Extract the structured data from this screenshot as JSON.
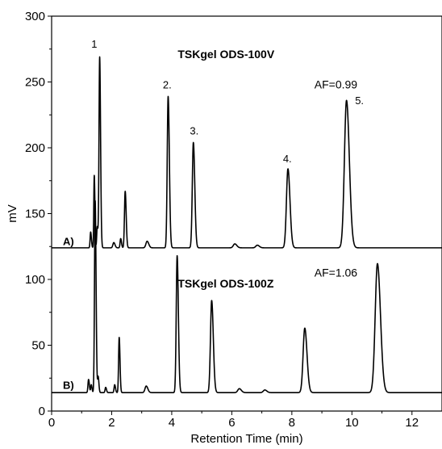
{
  "chart_data": {
    "type": "line",
    "title": "",
    "xlabel": "Retention Time (min)",
    "ylabel": "mV",
    "xlim": [
      0,
      13
    ],
    "ylim": [
      0,
      300
    ],
    "x_ticks": [
      0,
      2,
      4,
      6,
      8,
      10,
      12
    ],
    "y_ticks": [
      0,
      50,
      100,
      150,
      200,
      250,
      300
    ],
    "grid": false,
    "color": "#000000",
    "series": [
      {
        "trace_label": "A)",
        "title": "TSKgel ODS-100V",
        "af": "AF=0.99",
        "baseline": 124,
        "peaks": [
          {
            "t": 1.3,
            "h": 12,
            "w": 0.018
          },
          {
            "t": 1.42,
            "h": 55,
            "w": 0.016
          },
          {
            "t": 1.52,
            "h": 16,
            "w": 0.018
          },
          {
            "t": 1.6,
            "h": 145,
            "w": 0.022
          },
          {
            "t": 2.07,
            "h": 4,
            "w": 0.03
          },
          {
            "t": 2.3,
            "h": 7,
            "w": 0.02
          },
          {
            "t": 2.45,
            "h": 43,
            "w": 0.024
          },
          {
            "t": 3.18,
            "h": 5,
            "w": 0.04
          },
          {
            "t": 3.88,
            "h": 115,
            "w": 0.03
          },
          {
            "t": 4.72,
            "h": 80,
            "w": 0.035
          },
          {
            "t": 6.1,
            "h": 3,
            "w": 0.05
          },
          {
            "t": 6.85,
            "h": 2,
            "w": 0.05
          },
          {
            "t": 7.87,
            "h": 60,
            "w": 0.05
          },
          {
            "t": 9.82,
            "h": 112,
            "w": 0.07
          }
        ],
        "peak_labels": [
          {
            "text": "1",
            "t": 1.42,
            "mv": 276
          },
          {
            "text": "2.",
            "t": 3.85,
            "mv": 245
          },
          {
            "text": "3.",
            "t": 4.75,
            "mv": 210
          },
          {
            "text": "4.",
            "t": 7.85,
            "mv": 189
          },
          {
            "text": "5.",
            "t": 10.25,
            "mv": 233
          }
        ]
      },
      {
        "trace_label": "B)",
        "title": "TSKgel ODS-100Z",
        "af": "AF=1.06",
        "baseline": 14,
        "peaks": [
          {
            "t": 1.23,
            "h": 10,
            "w": 0.02
          },
          {
            "t": 1.32,
            "h": 6,
            "w": 0.018
          },
          {
            "t": 1.45,
            "h": 146,
            "w": 0.022
          },
          {
            "t": 1.55,
            "h": 12,
            "w": 0.018
          },
          {
            "t": 1.8,
            "h": 4,
            "w": 0.02
          },
          {
            "t": 2.1,
            "h": 6,
            "w": 0.02
          },
          {
            "t": 2.25,
            "h": 42,
            "w": 0.02
          },
          {
            "t": 3.15,
            "h": 5,
            "w": 0.04
          },
          {
            "t": 4.18,
            "h": 104,
            "w": 0.03
          },
          {
            "t": 5.33,
            "h": 70,
            "w": 0.04
          },
          {
            "t": 6.25,
            "h": 3,
            "w": 0.05
          },
          {
            "t": 7.1,
            "h": 2,
            "w": 0.05
          },
          {
            "t": 8.43,
            "h": 49,
            "w": 0.055
          },
          {
            "t": 10.85,
            "h": 98,
            "w": 0.075
          }
        ],
        "peak_labels": []
      }
    ]
  }
}
